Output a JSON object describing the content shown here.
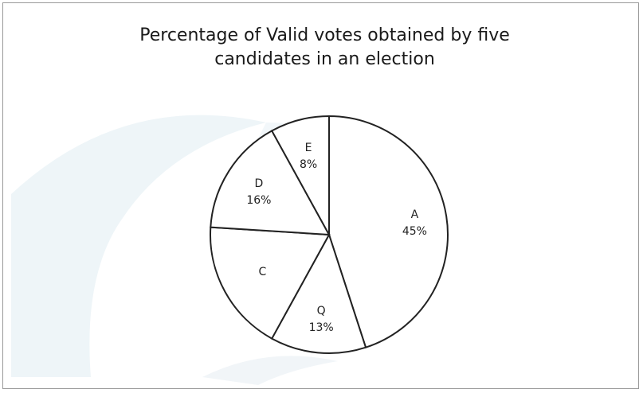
{
  "chart_data": {
    "type": "pie",
    "title_lines": [
      "Percentage of Valid votes obtained by five",
      "candidates in an election"
    ],
    "slices": [
      {
        "label": "A",
        "value": 45,
        "value_label": "45%"
      },
      {
        "label": "Q",
        "value": 13,
        "value_label": "13%"
      },
      {
        "label": "C",
        "value": 18,
        "value_label": ""
      },
      {
        "label": "D",
        "value": 16,
        "value_label": "16%"
      },
      {
        "label": "E",
        "value": 8,
        "value_label": "8%"
      }
    ],
    "start": "12 o'clock",
    "direction": "clockwise",
    "colors": {
      "fill": "#ffffff",
      "stroke": "#222222"
    },
    "legend": "none"
  }
}
